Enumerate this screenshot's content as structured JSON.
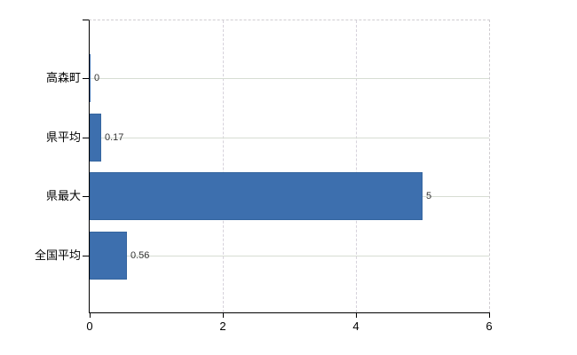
{
  "chart_data": {
    "type": "bar",
    "orientation": "horizontal",
    "categories": [
      "高森町",
      "県平均",
      "県最大",
      "全国平均"
    ],
    "values": [
      0,
      0.17,
      5,
      0.56
    ],
    "value_labels": [
      "0",
      "0.17",
      "5",
      "0.56"
    ],
    "xlim": [
      0,
      6
    ],
    "x_ticks": [
      0,
      2,
      4,
      6
    ],
    "x_tick_labels": [
      "0",
      "2",
      "4",
      "6"
    ],
    "grid": {
      "horizontal": "solid",
      "vertical": "dashed"
    },
    "legend_position": "none",
    "colors": {
      "bar": "#3d6fae",
      "bar_border": "#35659f",
      "h_gridline": "#d7ddd3",
      "v_gridline": "#d6d2db",
      "plot_border": "#d0cdd1",
      "axis": "#000000",
      "value_label": "#333333",
      "tick_label": "#000000",
      "background": "#ffffff"
    }
  }
}
